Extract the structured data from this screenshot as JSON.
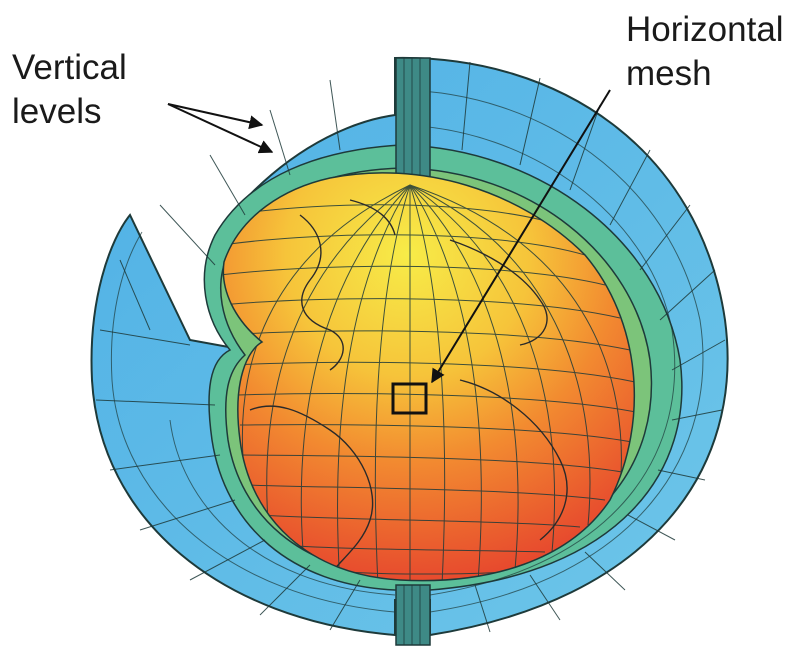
{
  "labels": {
    "vertical": {
      "line1": "Vertical",
      "line2": "levels"
    },
    "horizontal": {
      "line1": "Horizontal",
      "line2": "mesh"
    }
  },
  "colors": {
    "outer_shell": "#5ab8e6",
    "middle_shell": "#5cbf9a",
    "inner_shell": "#7cc47a",
    "core_top": "#f2e23c",
    "core_mid": "#f4a02e",
    "core_bottom": "#e8432e",
    "grid_line": "#1e3a3a",
    "coastline": "#2a2a2a"
  }
}
